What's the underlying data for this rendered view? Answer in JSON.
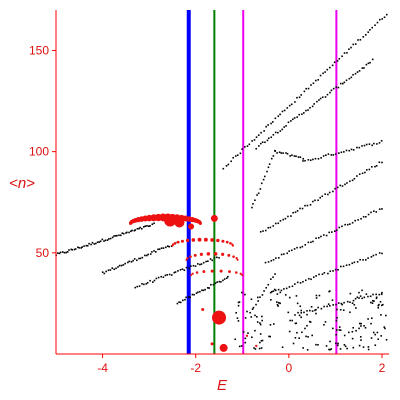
{
  "colors": {
    "axis": "#ff0000",
    "tick_text": "#dd1111",
    "dots_black": "#000000",
    "dots_red": "#ee1111",
    "line_blue": "#0000ff",
    "line_green": "#008000",
    "line_magenta": "#ee00ee"
  },
  "chart_data": {
    "type": "scatter",
    "xlabel": "E",
    "ylabel": "<n>",
    "xlim": [
      -5,
      2.15
    ],
    "ylim": [
      0,
      170
    ],
    "xticks": [
      -4,
      -2,
      0,
      2
    ],
    "yticks": [
      50,
      100,
      150
    ],
    "vertical_lines": [
      {
        "x": -2.15,
        "color": "#0000ff",
        "width": 4
      },
      {
        "x": -1.6,
        "color": "#008000",
        "width": 2
      },
      {
        "x": -0.98,
        "color": "#ee00ee",
        "width": 2
      },
      {
        "x": 1.02,
        "color": "#ee00ee",
        "width": 2
      }
    ],
    "black_bands": [
      {
        "from": [
          -5.0,
          49
        ],
        "to": [
          -2.9,
          64
        ],
        "n": 60
      },
      {
        "from": [
          -4.0,
          40
        ],
        "to": [
          -2.4,
          55
        ],
        "n": 40
      },
      {
        "from": [
          -3.3,
          33
        ],
        "to": [
          -1.5,
          48
        ],
        "n": 40
      },
      {
        "from": [
          -2.4,
          25
        ],
        "to": [
          -1.3,
          38
        ],
        "n": 28
      },
      {
        "from": [
          -1.4,
          92
        ],
        "to": [
          2.1,
          168
        ],
        "n": 70
      },
      {
        "from": [
          -0.7,
          102
        ],
        "to": [
          1.8,
          145
        ],
        "n": 55
      },
      {
        "from": [
          -0.8,
          72
        ],
        "to": [
          -0.3,
          100
        ],
        "n": 15
      },
      {
        "from": [
          -0.3,
          100
        ],
        "to": [
          0.3,
          97
        ],
        "n": 14
      },
      {
        "from": [
          0.3,
          95
        ],
        "to": [
          2.0,
          105
        ],
        "n": 32
      },
      {
        "from": [
          -0.6,
          60
        ],
        "to": [
          2.0,
          95
        ],
        "n": 50
      },
      {
        "from": [
          -0.5,
          45
        ],
        "to": [
          2.0,
          72
        ],
        "n": 45
      },
      {
        "from": [
          -0.4,
          30
        ],
        "to": [
          2.0,
          50
        ],
        "n": 42
      },
      {
        "from": [
          0.2,
          20
        ],
        "to": [
          2.0,
          30
        ],
        "n": 30
      },
      {
        "from": [
          -0.7,
          24
        ],
        "to": [
          -0.3,
          40
        ],
        "n": 10
      }
    ],
    "black_cluster": {
      "xrange": [
        -1.2,
        2.1
      ],
      "yrange": [
        2,
        32
      ],
      "n": 180
    },
    "red_arcs": [
      {
        "cx": -2.65,
        "cy": 66,
        "rx": 0.75,
        "ry": 3,
        "n": 24,
        "rmin": 1.5,
        "rmax": 4
      },
      {
        "cx": -1.85,
        "cy": 55,
        "rx": 0.65,
        "ry": 3,
        "n": 16,
        "rmin": 1,
        "rmax": 2
      },
      {
        "cx": -1.65,
        "cy": 48,
        "rx": 0.55,
        "ry": 3,
        "n": 12,
        "rmin": 1,
        "rmax": 1.8
      },
      {
        "cx": -1.55,
        "cy": 40,
        "rx": 0.55,
        "ry": 2,
        "n": 10,
        "rmin": 1,
        "rmax": 1.6
      }
    ],
    "red_points": [
      {
        "x": -2.55,
        "y": 66,
        "r": 6
      },
      {
        "x": -2.35,
        "y": 65,
        "r": 5
      },
      {
        "x": -2.1,
        "y": 63,
        "r": 3
      },
      {
        "x": -1.6,
        "y": 67,
        "r": 3.5
      },
      {
        "x": -1.5,
        "y": 18,
        "r": 7
      },
      {
        "x": -1.4,
        "y": 3,
        "r": 4
      },
      {
        "x": -1.65,
        "y": 5,
        "r": 1.5
      },
      {
        "x": -1.85,
        "y": 22,
        "r": 1.5
      },
      {
        "x": -0.7,
        "y": 4,
        "r": 1.2
      },
      {
        "x": -0.9,
        "y": 9,
        "r": 1.2
      }
    ]
  }
}
